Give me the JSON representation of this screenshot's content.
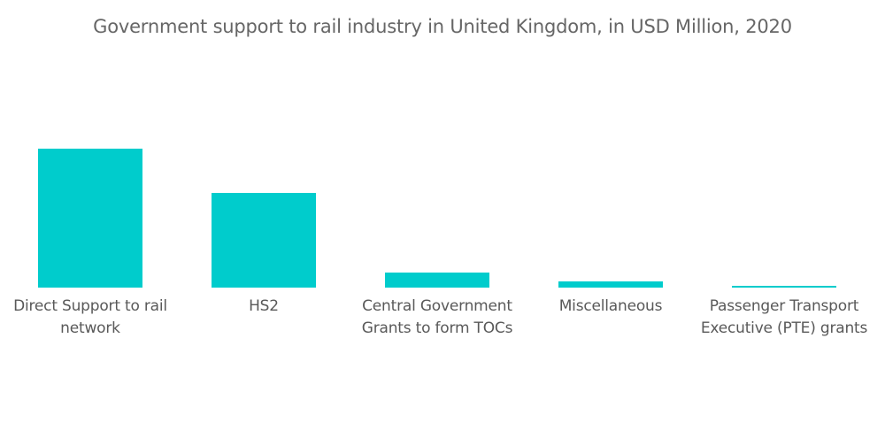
{
  "chart_data": {
    "type": "bar",
    "title": "Government support to rail industry in United Kingdom, in USD Million, 2020",
    "categories": [
      "Direct Support to rail network",
      "HS2",
      "Central Government Grants to form TOCs",
      "Miscellaneous",
      "Passenger Transport Executive (PTE) grants"
    ],
    "values": [
      157,
      107,
      17,
      7,
      2
    ],
    "ylim": [
      0,
      280
    ],
    "xlabel": "",
    "ylabel": "",
    "grid": false,
    "legend": "none",
    "bar_color": "#00CCCC"
  }
}
